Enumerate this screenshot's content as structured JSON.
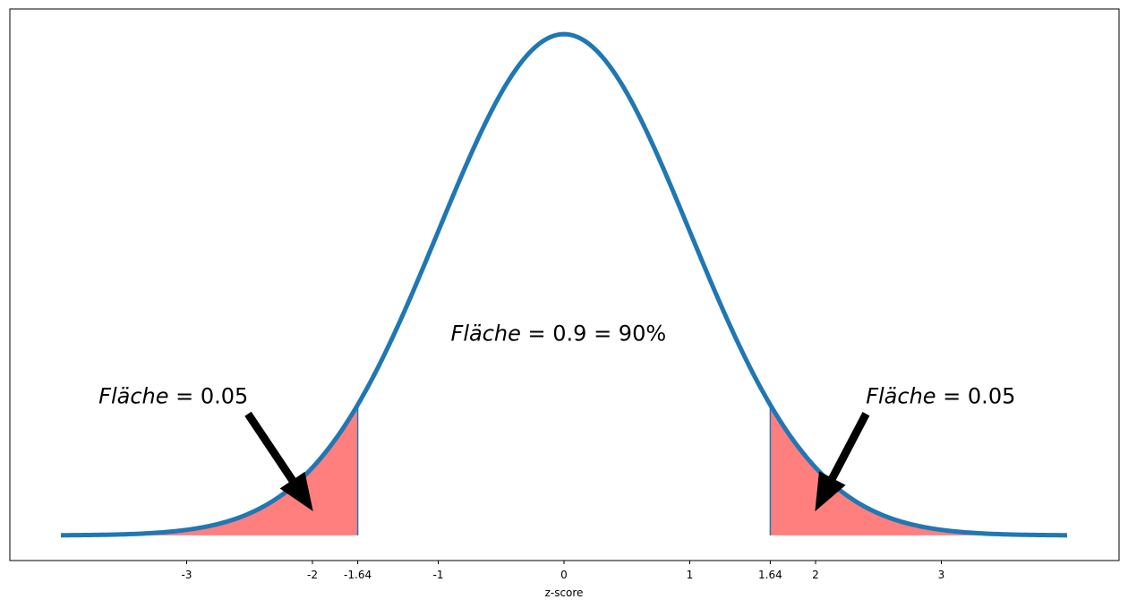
{
  "chart_data": {
    "type": "area",
    "xlabel": "z-score",
    "ylabel": "",
    "xlim": [
      -4.0,
      4.0
    ],
    "ylim": [
      -0.02,
      0.419
    ],
    "x_ticks": [
      -3,
      -2,
      -1.64,
      -1,
      0,
      1,
      1.64,
      2,
      3
    ],
    "x_tick_labels": [
      "-3",
      "-2",
      "-1.64",
      "-1",
      "0",
      "1",
      "1.64",
      "2",
      "3"
    ],
    "y_ticks_visible": false,
    "grid": false,
    "series": [
      {
        "kind": "curve",
        "function": "standard normal pdf",
        "x_range": [
          -4.0,
          4.0
        ],
        "color": "#1f77b4"
      }
    ],
    "shaded_regions": [
      {
        "x_from": -4.0,
        "x_to": -1.64,
        "color": "#ff7f7f"
      },
      {
        "x_from": 1.64,
        "x_to": 4.0,
        "color": "#ff7f7f"
      }
    ],
    "annotations": [
      {
        "italic": "Fläche",
        "text": " = 0.9 = 90%",
        "x": -0.9,
        "y": 0.155
      },
      {
        "italic": "Fläche",
        "text": " = 0.05",
        "x": -3.7,
        "y": 0.105,
        "arrow_to": [
          -2.0,
          0.02
        ]
      },
      {
        "italic": "Fläche",
        "text": " = 0.05",
        "x": 2.4,
        "y": 0.105,
        "arrow_to": [
          2.0,
          0.02
        ]
      }
    ]
  }
}
